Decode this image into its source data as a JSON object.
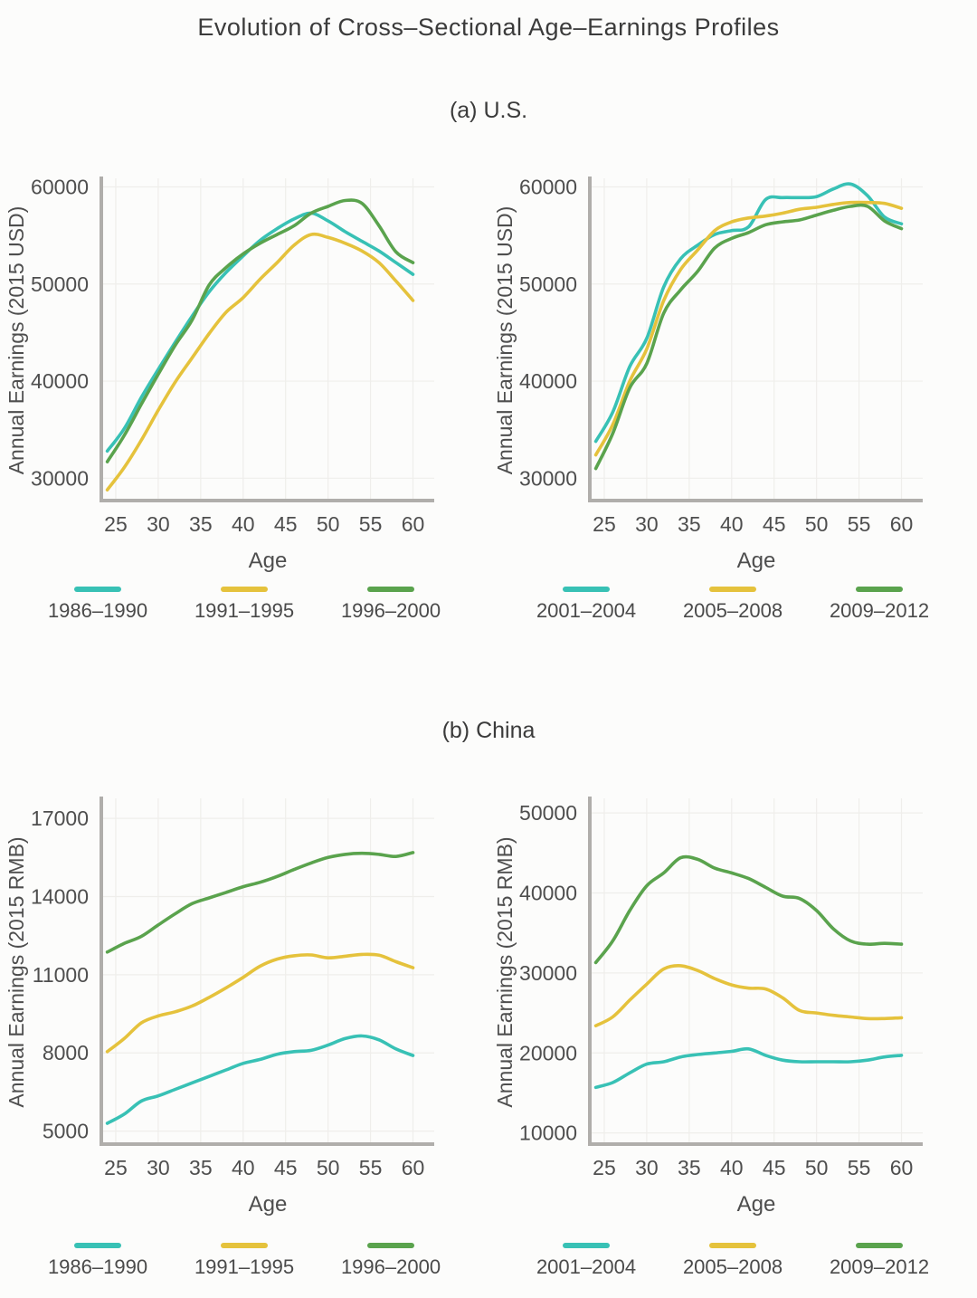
{
  "figure": {
    "title": "Evolution of Cross–Sectional Age–Earnings Profiles",
    "sections": [
      {
        "label": "(a) U.S.",
        "ylabel": "Annual Earnings (2015 USD)",
        "xlabel": "Age"
      },
      {
        "label": "(b) China",
        "ylabel": "Annual Earnings (2015 RMB)",
        "xlabel": "Age"
      }
    ]
  },
  "colors": {
    "cyan": "#38c1b5",
    "yellow": "#e5c23c",
    "green": "#5aa34d",
    "axis": "#b0aeab",
    "grid": "#efeeeb",
    "tick_text": "#4e4e4e",
    "title_text": "#3b3b3b"
  },
  "chart_data": [
    {
      "id": "us-1986-2000",
      "type": "line",
      "title": "(a) U.S.",
      "xlabel": "Age",
      "ylabel": "Annual Earnings (2015 USD)",
      "x": [
        24,
        26,
        28,
        30,
        32,
        34,
        36,
        38,
        40,
        42,
        44,
        46,
        48,
        50,
        52,
        54,
        56,
        58,
        60
      ],
      "xticks": [
        25,
        30,
        35,
        40,
        45,
        50,
        55,
        60
      ],
      "yticks": [
        30000,
        40000,
        50000,
        60000
      ],
      "xlim": [
        23.3,
        62.5
      ],
      "ylim": [
        27700,
        60700
      ],
      "grid": true,
      "legend_position": "bottom",
      "series": [
        {
          "name": "1986–1990",
          "color": "#38c1b5",
          "values": [
            32800,
            35100,
            38300,
            41200,
            44000,
            46700,
            49200,
            51200,
            52900,
            54500,
            55700,
            56700,
            57300,
            56500,
            55400,
            54400,
            53400,
            52200,
            51000
          ]
        },
        {
          "name": "1991–1995",
          "color": "#e5c23c",
          "values": [
            28800,
            31100,
            33900,
            37000,
            39900,
            42400,
            44900,
            47100,
            48600,
            50500,
            52200,
            54000,
            55100,
            54800,
            54200,
            53400,
            52200,
            50300,
            48300
          ]
        },
        {
          "name": "1996–2000",
          "color": "#5aa34d",
          "values": [
            31700,
            34400,
            37600,
            40700,
            43700,
            46300,
            49900,
            51700,
            53100,
            54200,
            55100,
            56000,
            57300,
            58000,
            58600,
            58300,
            56000,
            53300,
            52200
          ]
        }
      ]
    },
    {
      "id": "us-2001-2012",
      "type": "line",
      "title": "(a) U.S.",
      "xlabel": "Age",
      "ylabel": "Annual Earnings (2015 USD)",
      "x": [
        24,
        26,
        28,
        30,
        32,
        34,
        36,
        38,
        40,
        42,
        44,
        46,
        48,
        50,
        52,
        54,
        56,
        58,
        60
      ],
      "xticks": [
        25,
        30,
        35,
        40,
        45,
        50,
        55,
        60
      ],
      "yticks": [
        30000,
        40000,
        50000,
        60000
      ],
      "xlim": [
        23.3,
        62.5
      ],
      "ylim": [
        27700,
        60700
      ],
      "grid": true,
      "legend_position": "bottom",
      "series": [
        {
          "name": "2001–2004",
          "color": "#38c1b5",
          "values": [
            33800,
            36800,
            41500,
            44400,
            49700,
            52600,
            54000,
            55100,
            55500,
            55900,
            58700,
            58900,
            58900,
            59000,
            59800,
            60300,
            59100,
            56900,
            56200
          ]
        },
        {
          "name": "2005–2008",
          "color": "#e5c23c",
          "values": [
            32400,
            35500,
            40000,
            43300,
            48300,
            51500,
            53500,
            55500,
            56400,
            56800,
            57000,
            57300,
            57700,
            57900,
            58200,
            58400,
            58400,
            58300,
            57800
          ]
        },
        {
          "name": "2009–2012",
          "color": "#5aa34d",
          "values": [
            31000,
            34600,
            39300,
            41800,
            47000,
            49400,
            51300,
            53700,
            54700,
            55300,
            56100,
            56400,
            56600,
            57100,
            57600,
            58000,
            58000,
            56500,
            55700
          ]
        }
      ]
    },
    {
      "id": "china-1986-2000",
      "type": "line",
      "title": "(b) China",
      "xlabel": "Age",
      "ylabel": "Annual Earnings (2015 RMB)",
      "x": [
        24,
        26,
        28,
        30,
        32,
        34,
        36,
        38,
        40,
        42,
        44,
        46,
        48,
        50,
        52,
        54,
        56,
        58,
        60
      ],
      "xticks": [
        25,
        30,
        35,
        40,
        45,
        50,
        55,
        60
      ],
      "yticks": [
        5000,
        8000,
        11000,
        14000,
        17000
      ],
      "xlim": [
        23.3,
        62.5
      ],
      "ylim": [
        4500,
        17700
      ],
      "grid": true,
      "legend_position": "bottom",
      "series": [
        {
          "name": "1986–1990",
          "color": "#38c1b5",
          "values": [
            5300,
            5650,
            6150,
            6350,
            6600,
            6850,
            7100,
            7350,
            7600,
            7750,
            7950,
            8050,
            8100,
            8300,
            8550,
            8650,
            8500,
            8150,
            7900
          ]
        },
        {
          "name": "1991–1995",
          "color": "#e5c23c",
          "values": [
            8050,
            8550,
            9150,
            9420,
            9580,
            9800,
            10130,
            10500,
            10900,
            11330,
            11600,
            11730,
            11760,
            11650,
            11710,
            11780,
            11750,
            11500,
            11270
          ]
        },
        {
          "name": "1996–2000",
          "color": "#5aa34d",
          "values": [
            11870,
            12200,
            12470,
            12910,
            13340,
            13730,
            13950,
            14160,
            14380,
            14550,
            14770,
            15040,
            15290,
            15500,
            15620,
            15660,
            15620,
            15540,
            15690
          ]
        }
      ]
    },
    {
      "id": "china-2001-2012",
      "type": "line",
      "title": "(b) China",
      "xlabel": "Age",
      "ylabel": "Annual Earnings (2015 RMB)",
      "x": [
        24,
        26,
        28,
        30,
        32,
        34,
        36,
        38,
        40,
        42,
        44,
        46,
        48,
        50,
        52,
        54,
        56,
        58,
        60
      ],
      "xticks": [
        25,
        30,
        35,
        40,
        45,
        50,
        55,
        60
      ],
      "yticks": [
        10000,
        20000,
        30000,
        40000,
        50000
      ],
      "xlim": [
        23.3,
        62.5
      ],
      "ylim": [
        8600,
        51600
      ],
      "grid": true,
      "legend_position": "bottom",
      "series": [
        {
          "name": "2001–2004",
          "color": "#38c1b5",
          "values": [
            15700,
            16300,
            17500,
            18600,
            18900,
            19500,
            19800,
            20000,
            20200,
            20500,
            19700,
            19100,
            18900,
            18900,
            18900,
            18900,
            19100,
            19500,
            19700
          ]
        },
        {
          "name": "2005–2008",
          "color": "#e5c23c",
          "values": [
            23400,
            24500,
            26600,
            28600,
            30500,
            30900,
            30300,
            29300,
            28500,
            28100,
            28000,
            26900,
            25300,
            25000,
            24700,
            24500,
            24300,
            24300,
            24400
          ]
        },
        {
          "name": "2009–2012",
          "color": "#5aa34d",
          "values": [
            31300,
            34000,
            37800,
            40900,
            42500,
            44400,
            44200,
            43100,
            42500,
            41800,
            40700,
            39600,
            39300,
            37800,
            35500,
            34000,
            33600,
            33700,
            33600
          ]
        }
      ]
    }
  ]
}
